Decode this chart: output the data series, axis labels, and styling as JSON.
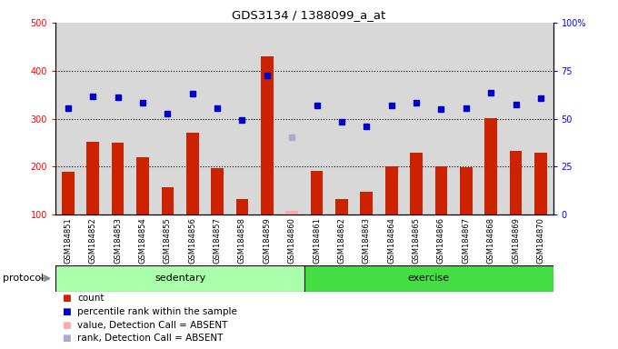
{
  "title": "GDS3134 / 1388099_a_at",
  "samples": [
    "GSM184851",
    "GSM184852",
    "GSM184853",
    "GSM184854",
    "GSM184855",
    "GSM184856",
    "GSM184857",
    "GSM184858",
    "GSM184859",
    "GSM184860",
    "GSM184861",
    "GSM184862",
    "GSM184863",
    "GSM184864",
    "GSM184865",
    "GSM184866",
    "GSM184867",
    "GSM184868",
    "GSM184869",
    "GSM184870"
  ],
  "count_values": [
    190,
    252,
    250,
    220,
    158,
    271,
    197,
    133,
    430,
    null,
    192,
    133,
    148,
    201,
    230,
    201,
    198,
    302,
    233,
    230
  ],
  "count_absent": [
    null,
    null,
    null,
    null,
    null,
    null,
    null,
    null,
    null,
    107,
    null,
    null,
    null,
    null,
    null,
    null,
    null,
    null,
    null,
    null
  ],
  "percentile_values": [
    322,
    346,
    344,
    333,
    310,
    352,
    322,
    297,
    390,
    null,
    327,
    294,
    284,
    328,
    333,
    320,
    322,
    355,
    330,
    343
  ],
  "percentile_absent": [
    null,
    null,
    null,
    null,
    null,
    null,
    null,
    null,
    null,
    262,
    null,
    null,
    null,
    null,
    null,
    null,
    null,
    null,
    null,
    null
  ],
  "sedentary_count": 10,
  "sedentary_label": "sedentary",
  "exercise_label": "exercise",
  "protocol_label": "protocol",
  "bar_color": "#cc2200",
  "bar_absent_color": "#ffaaaa",
  "dot_color": "#0000cc",
  "dot_absent_color": "#aaaacc",
  "left_ylim": [
    100,
    500
  ],
  "left_yticks": [
    100,
    200,
    300,
    400,
    500
  ],
  "right_ylim": [
    0,
    100
  ],
  "right_yticks": [
    0,
    25,
    50,
    75,
    100
  ],
  "right_yticklabels": [
    "0",
    "25",
    "50",
    "75",
    "100%"
  ],
  "grid_values": [
    200,
    300,
    400
  ],
  "legend_items": [
    {
      "color": "#cc2200",
      "label": "count"
    },
    {
      "color": "#0000cc",
      "label": "percentile rank within the sample"
    },
    {
      "color": "#ffaaaa",
      "label": "value, Detection Call = ABSENT"
    },
    {
      "color": "#aaaacc",
      "label": "rank, Detection Call = ABSENT"
    }
  ],
  "col_bg_color": "#d8d8d8",
  "chart_bg": "#f8f8f8",
  "protocol_sed_color": "#aaffaa",
  "protocol_ex_color": "#44dd44",
  "arrow_color": "#888888"
}
